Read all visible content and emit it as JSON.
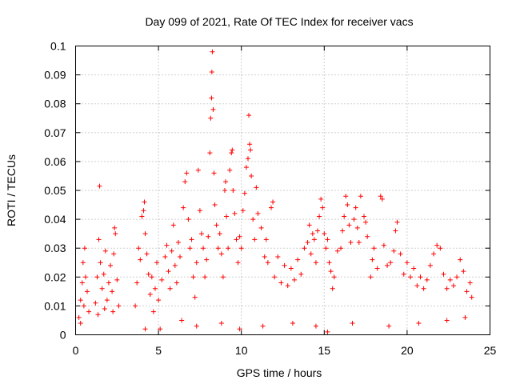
{
  "chart_data": {
    "type": "scatter",
    "title": "Day 099 of 2021, Rate Of TEC Index for receiver vacs",
    "xlabel": "GPS time / hours",
    "ylabel": "ROTI / TECUs",
    "xlim": [
      0,
      25
    ],
    "ylim": [
      0,
      0.1
    ],
    "xticks": [
      0,
      5,
      10,
      15,
      20,
      25
    ],
    "xtick_labels": [
      "0",
      "5",
      "10",
      "15",
      "20",
      "25"
    ],
    "yticks": [
      0,
      0.01,
      0.02,
      0.03,
      0.04,
      0.05,
      0.06,
      0.07,
      0.08,
      0.09,
      0.1
    ],
    "ytick_labels": [
      "0",
      "0.01",
      "0.02",
      "0.03",
      "0.04",
      "0.05",
      "0.06",
      "0.07",
      "0.08",
      "0.09",
      "0.1"
    ],
    "grid": true,
    "marker": "plus",
    "color": "#ff0000",
    "series": [
      {
        "name": "ROTI",
        "points": [
          [
            0.2,
            0.006
          ],
          [
            0.3,
            0.012
          ],
          [
            0.4,
            0.018
          ],
          [
            0.45,
            0.025
          ],
          [
            0.5,
            0.01
          ],
          [
            0.55,
            0.03
          ],
          [
            0.6,
            0.02
          ],
          [
            0.7,
            0.015
          ],
          [
            0.8,
            0.008
          ],
          [
            0.3,
            0.004
          ],
          [
            1.2,
            0.011
          ],
          [
            1.3,
            0.02
          ],
          [
            1.4,
            0.033
          ],
          [
            1.45,
            0.0515
          ],
          [
            1.5,
            0.025
          ],
          [
            1.6,
            0.016
          ],
          [
            1.7,
            0.021
          ],
          [
            1.8,
            0.029
          ],
          [
            1.9,
            0.012
          ],
          [
            2.0,
            0.018
          ],
          [
            2.1,
            0.024
          ],
          [
            2.2,
            0.015
          ],
          [
            2.3,
            0.028
          ],
          [
            2.35,
            0.037
          ],
          [
            2.4,
            0.035
          ],
          [
            2.5,
            0.019
          ],
          [
            2.6,
            0.01
          ],
          [
            1.35,
            0.007
          ],
          [
            1.75,
            0.009
          ],
          [
            2.25,
            0.008
          ],
          [
            3.6,
            0.01
          ],
          [
            3.7,
            0.018
          ],
          [
            3.8,
            0.03
          ],
          [
            3.9,
            0.026
          ],
          [
            4.0,
            0.041
          ],
          [
            4.1,
            0.043
          ],
          [
            4.15,
            0.046
          ],
          [
            4.2,
            0.035
          ],
          [
            4.3,
            0.028
          ],
          [
            4.4,
            0.021
          ],
          [
            4.5,
            0.014
          ],
          [
            4.6,
            0.02
          ],
          [
            4.7,
            0.008
          ],
          [
            4.8,
            0.016
          ],
          [
            4.9,
            0.025
          ],
          [
            5.0,
            0.012
          ],
          [
            5.2,
            0.019
          ],
          [
            5.4,
            0.027
          ],
          [
            5.5,
            0.031
          ],
          [
            5.6,
            0.022
          ],
          [
            5.7,
            0.016
          ],
          [
            5.8,
            0.029
          ],
          [
            5.9,
            0.038
          ],
          [
            6.0,
            0.024
          ],
          [
            6.1,
            0.018
          ],
          [
            6.2,
            0.032
          ],
          [
            6.3,
            0.027
          ],
          [
            6.5,
            0.044
          ],
          [
            6.6,
            0.053
          ],
          [
            6.7,
            0.056
          ],
          [
            6.8,
            0.04
          ],
          [
            6.9,
            0.03
          ],
          [
            7.0,
            0.033
          ],
          [
            7.1,
            0.02
          ],
          [
            7.2,
            0.013
          ],
          [
            7.3,
            0.025
          ],
          [
            7.4,
            0.057
          ],
          [
            7.5,
            0.043
          ],
          [
            7.6,
            0.035
          ],
          [
            7.7,
            0.03
          ],
          [
            7.8,
            0.02
          ],
          [
            7.9,
            0.026
          ],
          [
            8.0,
            0.034
          ],
          [
            8.1,
            0.063
          ],
          [
            8.15,
            0.075
          ],
          [
            8.2,
            0.082
          ],
          [
            8.22,
            0.091
          ],
          [
            8.25,
            0.098
          ],
          [
            8.3,
            0.078
          ],
          [
            8.35,
            0.056
          ],
          [
            8.4,
            0.045
          ],
          [
            8.5,
            0.038
          ],
          [
            8.6,
            0.03
          ],
          [
            8.7,
            0.035
          ],
          [
            8.8,
            0.028
          ],
          [
            8.9,
            0.02
          ],
          [
            9.0,
            0.05
          ],
          [
            9.05,
            0.053
          ],
          [
            9.1,
            0.041
          ],
          [
            9.2,
            0.03
          ],
          [
            9.3,
            0.057
          ],
          [
            9.4,
            0.063
          ],
          [
            9.45,
            0.064
          ],
          [
            9.5,
            0.05
          ],
          [
            9.6,
            0.042
          ],
          [
            9.7,
            0.033
          ],
          [
            9.8,
            0.025
          ],
          [
            9.9,
            0.034
          ],
          [
            10.0,
            0.03
          ],
          [
            10.1,
            0.043
          ],
          [
            10.2,
            0.049
          ],
          [
            10.3,
            0.058
          ],
          [
            10.4,
            0.061
          ],
          [
            10.45,
            0.076
          ],
          [
            10.5,
            0.066
          ],
          [
            10.55,
            0.064
          ],
          [
            10.6,
            0.055
          ],
          [
            10.7,
            0.04
          ],
          [
            10.8,
            0.033
          ],
          [
            10.9,
            0.051
          ],
          [
            11.0,
            0.042
          ],
          [
            11.2,
            0.037
          ],
          [
            11.4,
            0.027
          ],
          [
            11.5,
            0.033
          ],
          [
            11.6,
            0.025
          ],
          [
            11.8,
            0.044
          ],
          [
            11.9,
            0.046
          ],
          [
            12.0,
            0.02
          ],
          [
            12.2,
            0.027
          ],
          [
            12.4,
            0.018
          ],
          [
            12.6,
            0.024
          ],
          [
            12.8,
            0.017
          ],
          [
            13.0,
            0.023
          ],
          [
            13.2,
            0.019
          ],
          [
            13.4,
            0.026
          ],
          [
            13.6,
            0.021
          ],
          [
            13.8,
            0.03
          ],
          [
            14.0,
            0.032
          ],
          [
            14.1,
            0.038
          ],
          [
            14.2,
            0.028
          ],
          [
            14.3,
            0.035
          ],
          [
            14.4,
            0.033
          ],
          [
            14.5,
            0.025
          ],
          [
            14.6,
            0.036
          ],
          [
            14.7,
            0.041
          ],
          [
            14.8,
            0.047
          ],
          [
            14.9,
            0.044
          ],
          [
            15.0,
            0.035
          ],
          [
            15.1,
            0.03
          ],
          [
            15.2,
            0.033
          ],
          [
            15.3,
            0.025
          ],
          [
            15.4,
            0.022
          ],
          [
            15.5,
            0.016
          ],
          [
            15.6,
            0.02
          ],
          [
            15.8,
            0.029
          ],
          [
            16.0,
            0.03
          ],
          [
            16.1,
            0.036
          ],
          [
            16.2,
            0.041
          ],
          [
            16.3,
            0.048
          ],
          [
            16.4,
            0.045
          ],
          [
            16.5,
            0.038
          ],
          [
            16.6,
            0.032
          ],
          [
            16.8,
            0.04
          ],
          [
            16.9,
            0.044
          ],
          [
            17.0,
            0.037
          ],
          [
            17.1,
            0.032
          ],
          [
            17.2,
            0.048
          ],
          [
            17.4,
            0.041
          ],
          [
            17.5,
            0.039
          ],
          [
            17.6,
            0.034
          ],
          [
            17.8,
            0.02
          ],
          [
            17.9,
            0.026
          ],
          [
            18.0,
            0.03
          ],
          [
            18.2,
            0.023
          ],
          [
            18.4,
            0.048
          ],
          [
            18.5,
            0.047
          ],
          [
            18.6,
            0.031
          ],
          [
            18.8,
            0.024
          ],
          [
            19.0,
            0.025
          ],
          [
            19.2,
            0.029
          ],
          [
            19.3,
            0.036
          ],
          [
            19.4,
            0.039
          ],
          [
            19.6,
            0.028
          ],
          [
            19.8,
            0.021
          ],
          [
            20.0,
            0.025
          ],
          [
            20.2,
            0.02
          ],
          [
            20.4,
            0.023
          ],
          [
            20.6,
            0.017
          ],
          [
            20.8,
            0.02
          ],
          [
            21.0,
            0.016
          ],
          [
            21.2,
            0.019
          ],
          [
            21.4,
            0.024
          ],
          [
            21.6,
            0.028
          ],
          [
            21.8,
            0.031
          ],
          [
            22.0,
            0.03
          ],
          [
            22.2,
            0.021
          ],
          [
            22.4,
            0.016
          ],
          [
            22.6,
            0.019
          ],
          [
            22.8,
            0.017
          ],
          [
            23.0,
            0.02
          ],
          [
            23.2,
            0.026
          ],
          [
            23.4,
            0.022
          ],
          [
            23.6,
            0.015
          ],
          [
            23.8,
            0.018
          ],
          [
            23.9,
            0.013
          ],
          [
            5.1,
            0.002
          ],
          [
            7.3,
            0.003
          ],
          [
            9.9,
            0.002
          ],
          [
            13.1,
            0.004
          ],
          [
            15.2,
            0.001
          ],
          [
            18.9,
            0.003
          ],
          [
            20.7,
            0.004
          ],
          [
            22.4,
            0.005
          ],
          [
            23.5,
            0.006
          ],
          [
            11.3,
            0.003
          ],
          [
            16.7,
            0.004
          ],
          [
            4.2,
            0.002
          ],
          [
            6.4,
            0.005
          ],
          [
            8.8,
            0.004
          ],
          [
            14.5,
            0.003
          ]
        ]
      }
    ]
  }
}
